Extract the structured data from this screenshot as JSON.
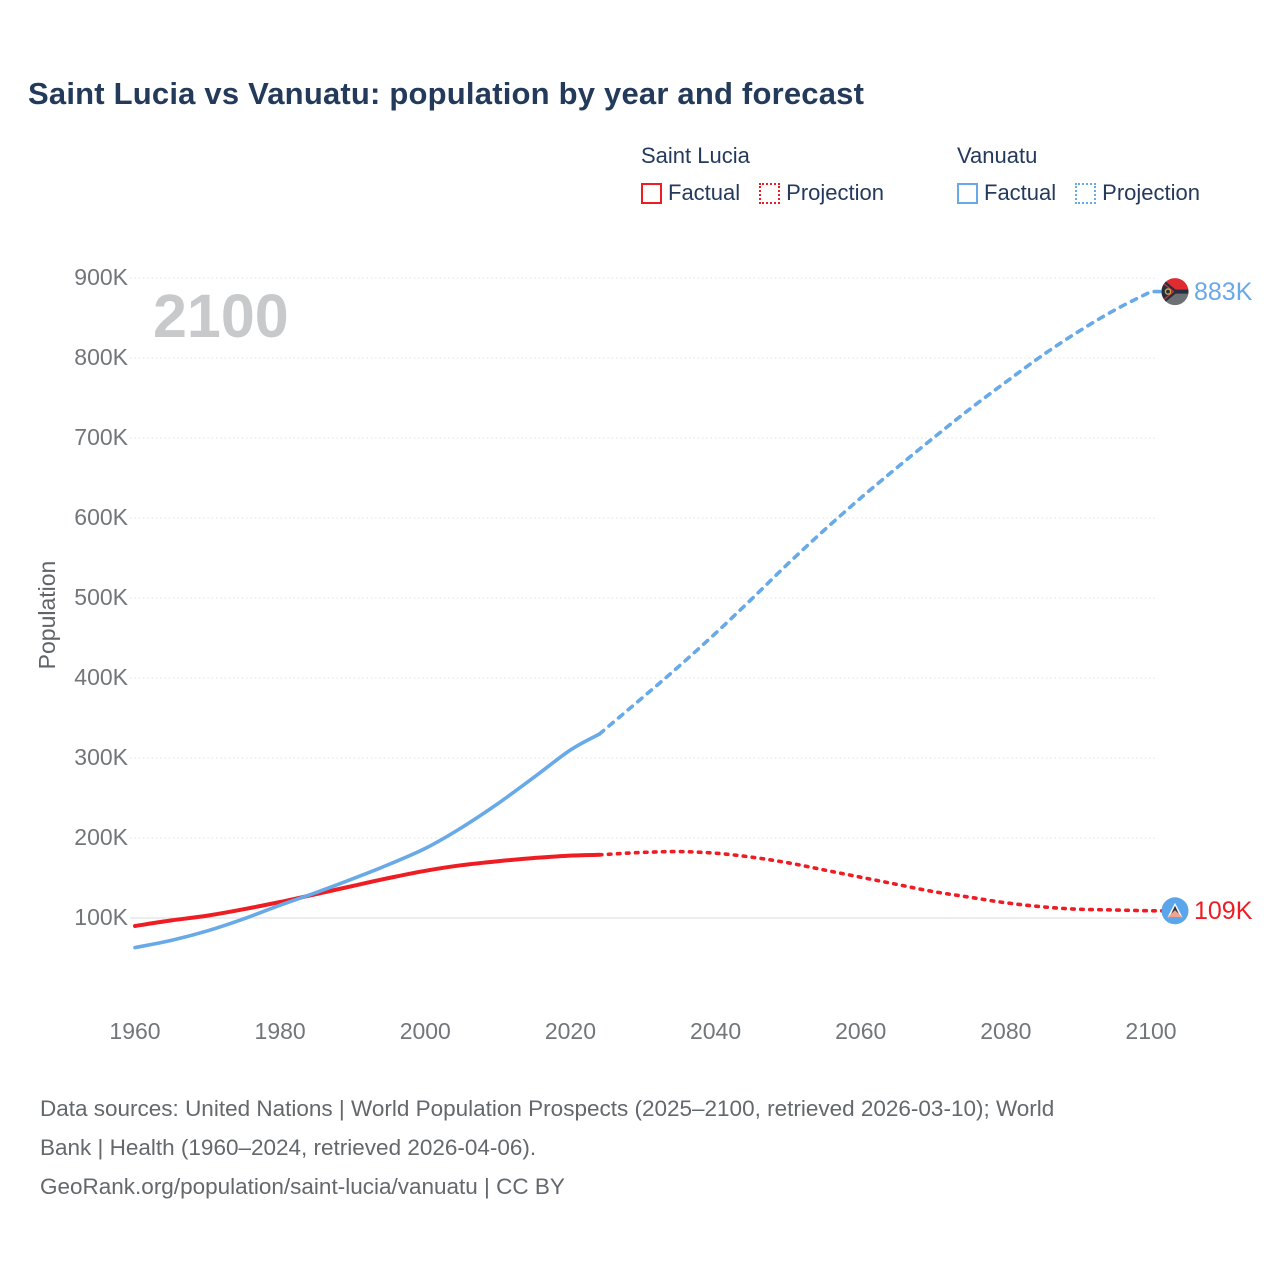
{
  "title": "Saint Lucia vs Vanuatu: population by year and forecast",
  "legend": {
    "groups": [
      {
        "name": "Saint Lucia",
        "items": [
          {
            "label": "Factual",
            "style": "solid",
            "color": "#ee1d23"
          },
          {
            "label": "Projection",
            "style": "dashed",
            "color": "#ee1d23"
          }
        ]
      },
      {
        "name": "Vanuatu",
        "items": [
          {
            "label": "Factual",
            "style": "solid",
            "color": "#68a9e8"
          },
          {
            "label": "Projection",
            "style": "dashed",
            "color": "#68a9e8"
          }
        ]
      }
    ]
  },
  "watermark": "2100",
  "end_labels": {
    "vanuatu": "883K",
    "saint_lucia": "109K"
  },
  "icons": {
    "vanuatu_marker": "vanuatu-flag-icon",
    "saint_lucia_marker": "saint-lucia-flag-icon"
  },
  "colors": {
    "saint_lucia": "#ee1d23",
    "vanuatu": "#68a9e8",
    "title_text": "#233a5a",
    "tick_text": "#72767a",
    "gridline": "#e0e2e4",
    "watermark": "#c7c9cb"
  },
  "footer": {
    "line1": "Data sources: United Nations | World Population Prospects (2025–2100, retrieved 2026-03-10); World",
    "line2": "Bank | Health (1960–2024, retrieved 2026-04-06).",
    "line3": "GeoRank.org/population/saint-lucia/vanuatu | CC BY"
  },
  "chart_data": {
    "type": "line",
    "title": "Saint Lucia vs Vanuatu: population by year and forecast",
    "xlabel": "",
    "ylabel": "Population",
    "xlim": [
      1960,
      2100
    ],
    "ylim_thousands": [
      60,
      940
    ],
    "grid": true,
    "legend_position": "top-right",
    "yticks": [
      {
        "value": 100,
        "label": "100K"
      },
      {
        "value": 200,
        "label": "200K"
      },
      {
        "value": 300,
        "label": "300K"
      },
      {
        "value": 400,
        "label": "400K"
      },
      {
        "value": 500,
        "label": "500K"
      },
      {
        "value": 600,
        "label": "600K"
      },
      {
        "value": 700,
        "label": "700K"
      },
      {
        "value": 800,
        "label": "800K"
      },
      {
        "value": 900,
        "label": "900K"
      }
    ],
    "xticks": [
      1960,
      1980,
      2000,
      2020,
      2040,
      2060,
      2080,
      2100
    ],
    "units": "thousands of people",
    "series": [
      {
        "name": "Saint Lucia — Factual",
        "color": "#ee1d23",
        "style": "solid",
        "width": 4,
        "points": [
          [
            1960,
            90
          ],
          [
            1965,
            97
          ],
          [
            1970,
            103
          ],
          [
            1975,
            111
          ],
          [
            1980,
            120
          ],
          [
            1985,
            130
          ],
          [
            1990,
            140
          ],
          [
            1995,
            150
          ],
          [
            2000,
            159
          ],
          [
            2005,
            166
          ],
          [
            2010,
            171
          ],
          [
            2015,
            175
          ],
          [
            2020,
            178
          ],
          [
            2024,
            179
          ]
        ]
      },
      {
        "name": "Saint Lucia — Projection",
        "color": "#ee1d23",
        "style": "dashed",
        "width": 3.6,
        "end_marker": "saint_lucia",
        "points": [
          [
            2024,
            179
          ],
          [
            2030,
            182
          ],
          [
            2035,
            183
          ],
          [
            2040,
            181
          ],
          [
            2045,
            176
          ],
          [
            2050,
            169
          ],
          [
            2055,
            160
          ],
          [
            2060,
            151
          ],
          [
            2065,
            142
          ],
          [
            2070,
            133
          ],
          [
            2075,
            126
          ],
          [
            2080,
            119
          ],
          [
            2085,
            114
          ],
          [
            2090,
            111
          ],
          [
            2095,
            110
          ],
          [
            2100,
            109
          ]
        ]
      },
      {
        "name": "Vanuatu — Factual",
        "color": "#68a9e8",
        "style": "solid",
        "width": 3.6,
        "points": [
          [
            1960,
            63
          ],
          [
            1965,
            72
          ],
          [
            1970,
            84
          ],
          [
            1975,
            99
          ],
          [
            1980,
            116
          ],
          [
            1985,
            132
          ],
          [
            1990,
            149
          ],
          [
            1995,
            167
          ],
          [
            2000,
            187
          ],
          [
            2005,
            213
          ],
          [
            2010,
            243
          ],
          [
            2015,
            276
          ],
          [
            2020,
            310
          ],
          [
            2024,
            330
          ]
        ]
      },
      {
        "name": "Vanuatu — Projection",
        "color": "#68a9e8",
        "style": "dashed",
        "width": 3.6,
        "end_marker": "vanuatu",
        "points": [
          [
            2024,
            330
          ],
          [
            2030,
            376
          ],
          [
            2035,
            415
          ],
          [
            2040,
            456
          ],
          [
            2045,
            499
          ],
          [
            2050,
            543
          ],
          [
            2055,
            585
          ],
          [
            2060,
            625
          ],
          [
            2065,
            663
          ],
          [
            2070,
            700
          ],
          [
            2075,
            736
          ],
          [
            2080,
            770
          ],
          [
            2085,
            803
          ],
          [
            2090,
            833
          ],
          [
            2095,
            860
          ],
          [
            2100,
            883
          ]
        ]
      }
    ],
    "end_values": {
      "vanuatu_2100_label": "883K",
      "saint_lucia_2100_label": "109K"
    }
  }
}
